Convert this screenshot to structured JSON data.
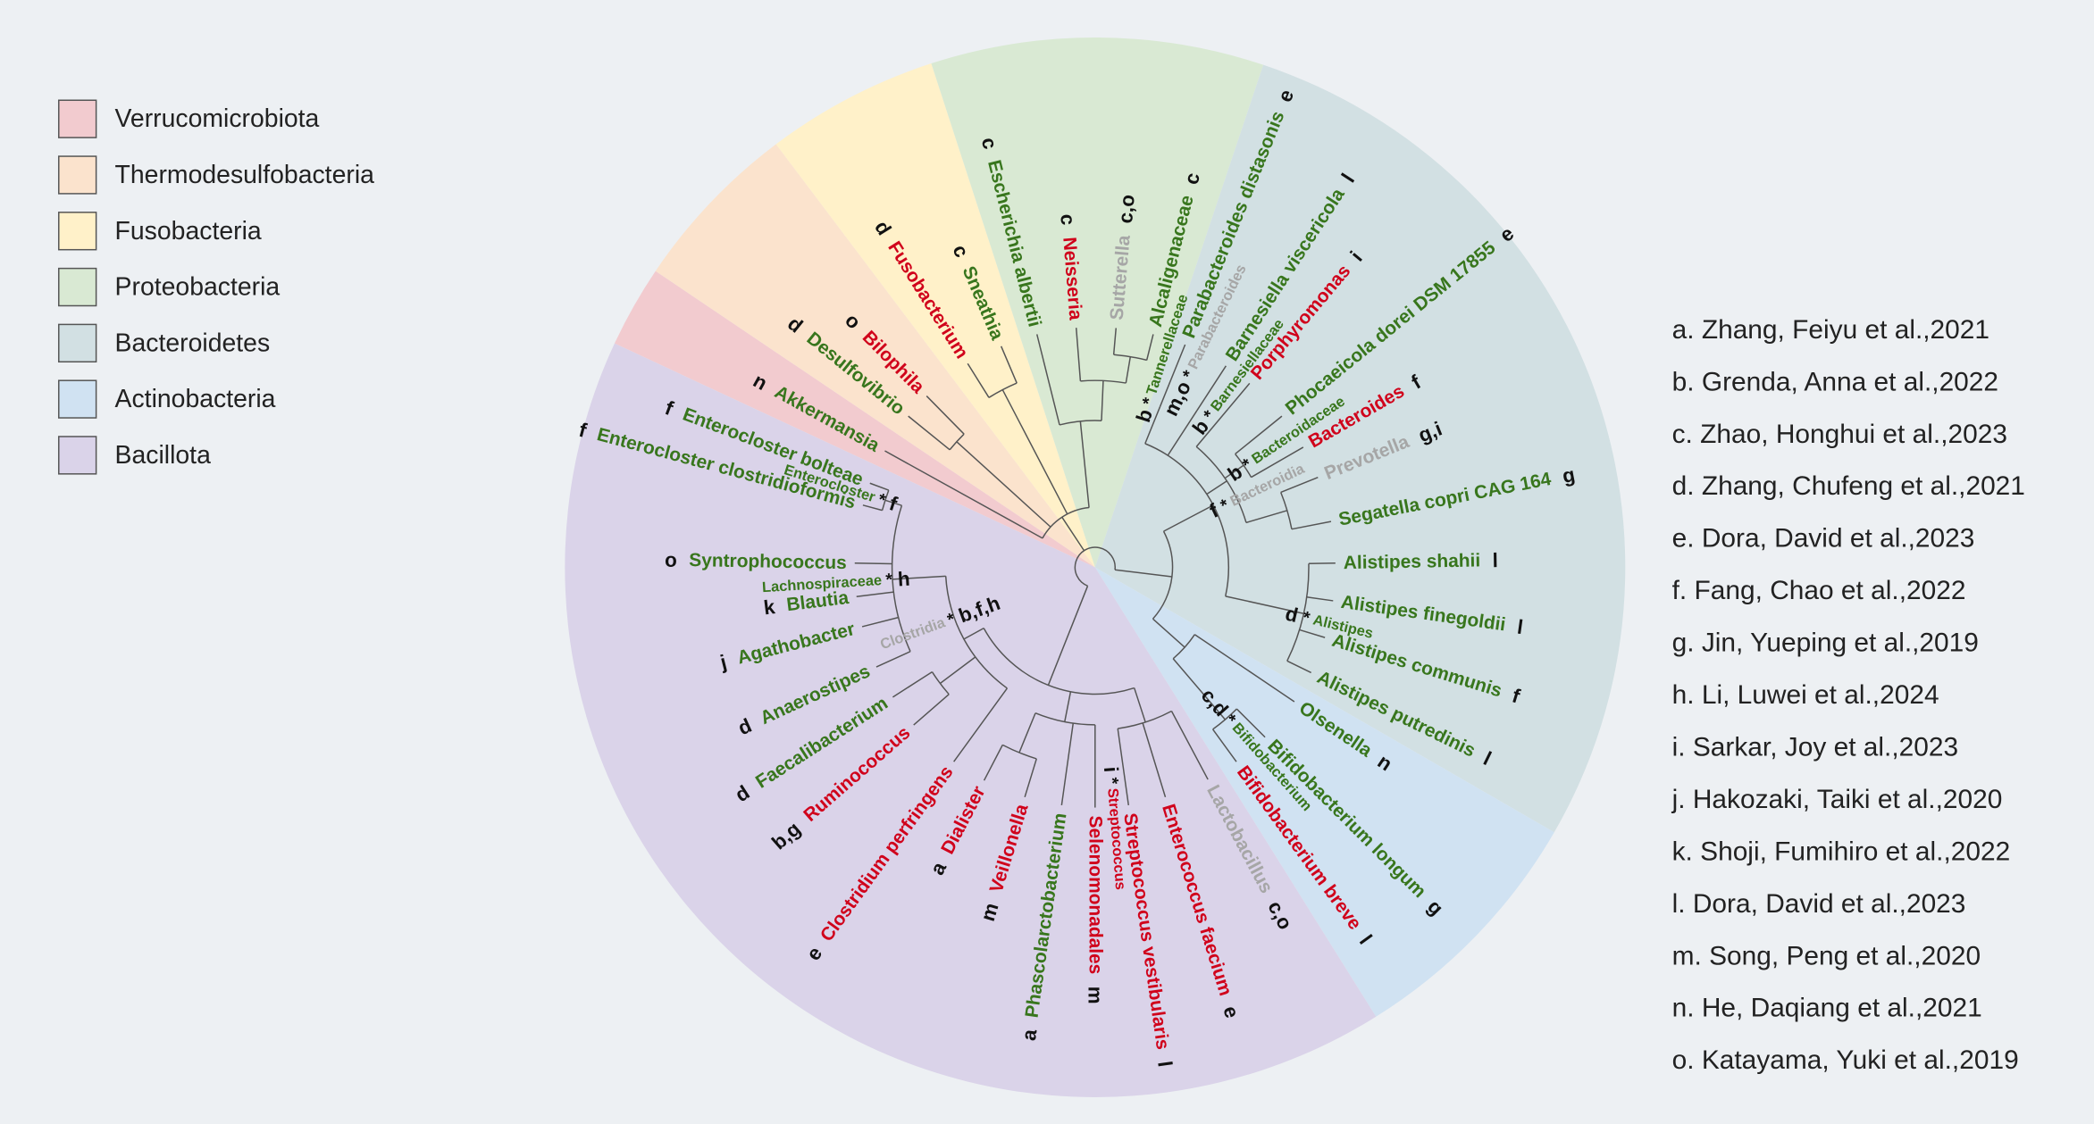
{
  "legend": [
    {
      "label": "Verrucomicrobiota",
      "color": "#f2cbcf"
    },
    {
      "label": "Thermodesulfobacteria",
      "color": "#fbe3cd"
    },
    {
      "label": "Fusobacteria",
      "color": "#fff1c9"
    },
    {
      "label": "Proteobacteria",
      "color": "#d9e9d3"
    },
    {
      "label": "Bacteroidetes",
      "color": "#d2e0e3"
    },
    {
      "label": "Actinobacteria",
      "color": "#d0e2f2"
    },
    {
      "label": "Bacillota",
      "color": "#dad3e9"
    }
  ],
  "references": [
    "a. Zhang, Feiyu et al.,2021",
    "b. Grenda, Anna et al.,2022",
    "c. Zhao, Honghui et al.,2023",
    "d. Zhang, Chufeng et al.,2021",
    "e. Dora, David et al.,2023",
    "f. Fang, Chao et al.,2022",
    "g. Jin, Yueping et al.,2019",
    "h. Li, Luwei et al.,2024",
    "i. Sarkar, Joy et al.,2023",
    "j. Hakozaki, Taiki et al.,2020",
    "k. Shoji, Fumihiro et al.,2022",
    "l. Dora, David et al.,2023",
    "m. Song, Peng et al.,2020",
    "n. He, Daqiang et al.,2021",
    "o. Katayama, Yuki et al.,2019"
  ],
  "significance_mark": "*",
  "leaves": [
    {
      "label": "Lactobacillus",
      "color": "#a6a6a6",
      "annotation": "c,o"
    },
    {
      "label": "Enterococcus faecium",
      "color": "#d0021b",
      "annotation": "e"
    },
    {
      "label": "Streptococcus vestibularis",
      "color": "#d0021b",
      "annotation": "l"
    },
    {
      "label": "Selenomonadales",
      "color": "#d0021b",
      "annotation": "m"
    },
    {
      "label": "Phascolarctobacterium",
      "color": "#38761d",
      "annotation": "a"
    },
    {
      "label": "Veillonella",
      "color": "#d0021b",
      "annotation": "m"
    },
    {
      "label": "Dialister",
      "color": "#d0021b",
      "annotation": "a"
    },
    {
      "label": "Clostridium perfringens",
      "color": "#d0021b",
      "annotation": "e"
    },
    {
      "label": "Ruminococcus",
      "color": "#d0021b",
      "annotation": "b,g"
    },
    {
      "label": "Faecalibacterium",
      "color": "#38761d",
      "annotation": "d"
    },
    {
      "label": "Anaerostipes",
      "color": "#38761d",
      "annotation": "d"
    },
    {
      "label": "Agathobacter",
      "color": "#38761d",
      "annotation": "j"
    },
    {
      "label": "Blautia",
      "color": "#38761d",
      "annotation": "k"
    },
    {
      "label": "Syntrophococcus",
      "color": "#38761d",
      "annotation": "o"
    },
    {
      "label": "Enterocloster clostridioformis",
      "color": "#38761d",
      "annotation": "f"
    },
    {
      "label": "Enterocloster bolteae",
      "color": "#38761d",
      "annotation": "f"
    },
    {
      "label": "Akkermansia",
      "color": "#38761d",
      "annotation": "n"
    },
    {
      "label": "Desulfovibrio",
      "color": "#38761d",
      "annotation": "d"
    },
    {
      "label": "Bilophila",
      "color": "#d0021b",
      "annotation": "o"
    },
    {
      "label": "Fusobacterium",
      "color": "#d0021b",
      "annotation": "d"
    },
    {
      "label": "Sneathia",
      "color": "#38761d",
      "annotation": "c"
    },
    {
      "label": "Escherichia albertii",
      "color": "#38761d",
      "annotation": "c"
    },
    {
      "label": "Neisseria",
      "color": "#d0021b",
      "annotation": "c"
    },
    {
      "label": "Sutterella",
      "color": "#a6a6a6",
      "annotation": "c,o"
    },
    {
      "label": "Alcaligenaceae",
      "color": "#38761d",
      "annotation": "c"
    },
    {
      "label": "Parabacteroides distasonis",
      "color": "#38761d",
      "annotation": "e"
    },
    {
      "label": "Barnesiella viscericola",
      "color": "#38761d",
      "annotation": "l"
    },
    {
      "label": "Porphyromonas",
      "color": "#d0021b",
      "annotation": "i"
    },
    {
      "label": "Phocaeicola dorei DSM 17855",
      "color": "#38761d",
      "annotation": "e"
    },
    {
      "label": "Bacteroides",
      "color": "#d0021b",
      "annotation": "f"
    },
    {
      "label": "Prevotella",
      "color": "#a6a6a6",
      "annotation": "g,i"
    },
    {
      "label": "Segatella copri CAG 164",
      "color": "#38761d",
      "annotation": "g"
    },
    {
      "label": "Alistipes shahii",
      "color": "#38761d",
      "annotation": "l"
    },
    {
      "label": "Alistipes finegoldii",
      "color": "#38761d",
      "annotation": "l"
    },
    {
      "label": "Alistipes communis",
      "color": "#38761d",
      "annotation": "f"
    },
    {
      "label": "Alistipes putredinis",
      "color": "#38761d",
      "annotation": "l"
    },
    {
      "label": "Olsenella",
      "color": "#38761d",
      "annotation": "n"
    },
    {
      "label": "Bifidobacterium longum",
      "color": "#38761d",
      "annotation": "g"
    },
    {
      "label": "Bifidobacterium breve",
      "color": "#d0021b",
      "annotation": "l"
    }
  ],
  "clades": [
    {
      "label": "Enterocloster",
      "color": "#38761d",
      "annotation": "f"
    },
    {
      "label": "Lachnospiraceae",
      "color": "#38761d",
      "annotation": "h"
    },
    {
      "label": "Clostridia",
      "color": "#a6a6a6",
      "annotation": "b,f,h"
    },
    {
      "label": "Streptococcus",
      "color": "#d0021b",
      "annotation": "i"
    },
    {
      "label": "Bifidobacterium",
      "color": "#38761d",
      "annotation": "c,d"
    },
    {
      "label": "Alistipes",
      "color": "#38761d",
      "annotation": "d"
    },
    {
      "label": "Bacteroidia",
      "color": "#a6a6a6",
      "annotation": "f"
    },
    {
      "label": "Bacteroidaceae",
      "color": "#38761d",
      "annotation": "b"
    },
    {
      "label": "Barnesiellaceae",
      "color": "#38761d",
      "annotation": "b"
    },
    {
      "label": "Tannerellaceae",
      "color": "#38761d",
      "annotation": "b"
    },
    {
      "label": "Parabacteroides",
      "color": "#a6a6a6",
      "annotation": "m,o"
    }
  ]
}
